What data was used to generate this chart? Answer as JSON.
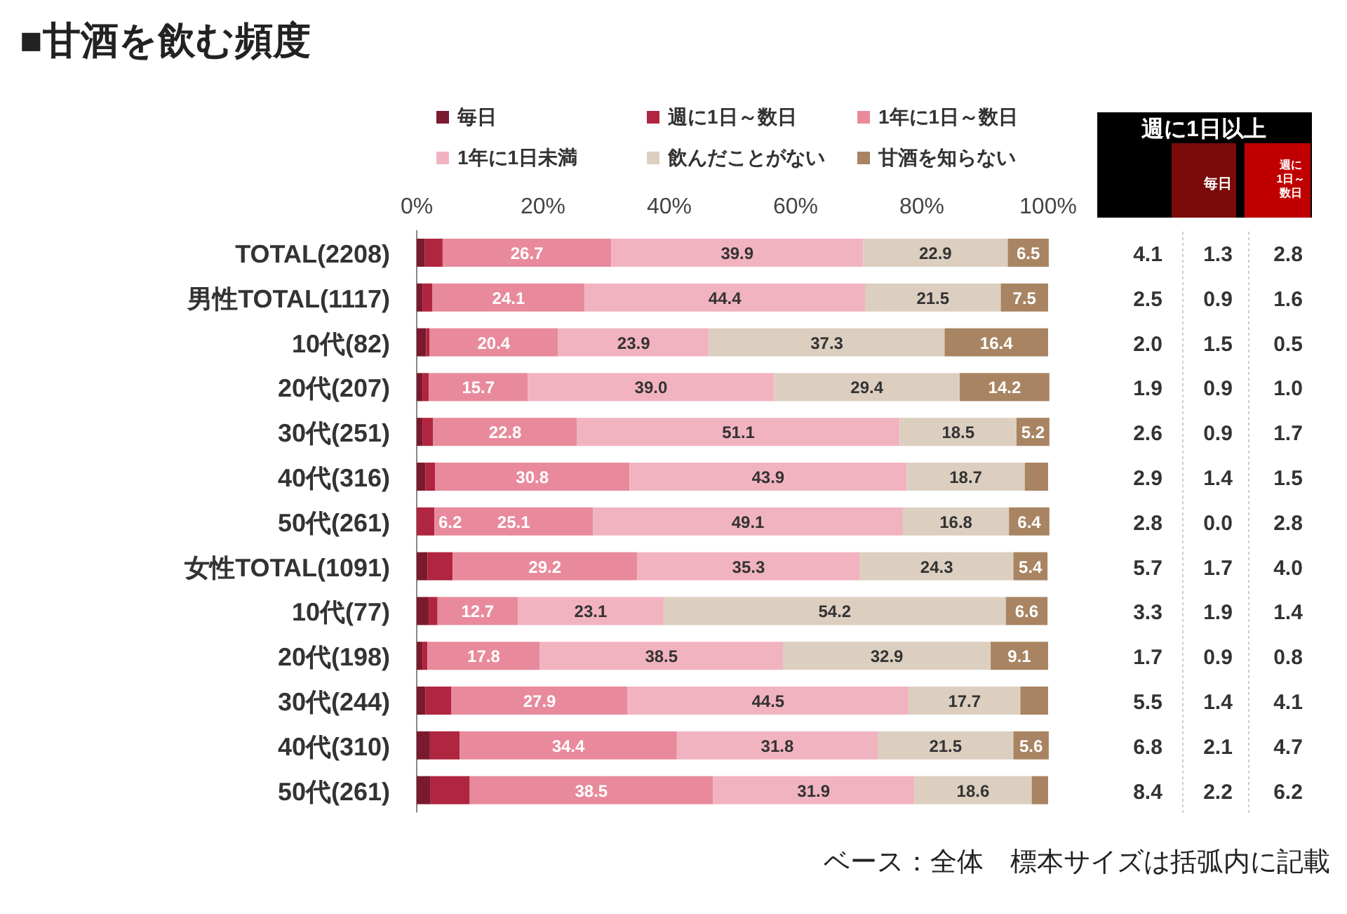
{
  "chart_data": [
    {
      "type": "bar",
      "orientation": "horizontal",
      "stacked": true,
      "legend": "top",
      "title": "■甘酒を飲む頻度",
      "categories": [
        "TOTAL(2208)",
        "男性TOTAL(1117)",
        "10代(82)",
        "20代(207)",
        "30代(251)",
        "40代(316)",
        "50代(261)",
        "女性TOTAL(1091)",
        "10代(77)",
        "20代(198)",
        "30代(244)",
        "40代(310)",
        "50代(261)"
      ],
      "xlim": [
        0,
        100
      ],
      "xticks": [
        {
          "value": 0,
          "label": "0%"
        },
        {
          "value": 20,
          "label": "20%"
        },
        {
          "value": 40,
          "label": "40%"
        },
        {
          "value": 60,
          "label": "60%"
        },
        {
          "value": 80,
          "label": "80%"
        },
        {
          "value": 100,
          "label": "100%"
        }
      ],
      "series": [
        {
          "name": "毎日",
          "color": "#7b1a2e",
          "values": [
            1.3,
            0.9,
            1.5,
            0.9,
            0.9,
            1.4,
            0.0,
            1.7,
            1.9,
            0.9,
            1.4,
            2.1,
            2.2
          ],
          "value_labels": [
            "1.3",
            "0.9",
            "1.5",
            "0.9",
            "0.9",
            "1.4",
            "0.0",
            "1.7",
            "1.9",
            "0.9",
            "1.4",
            "2.1",
            "2.2"
          ]
        },
        {
          "name": "週に1日～数日",
          "color": "#b0253f",
          "values": [
            2.8,
            1.6,
            0.5,
            1.0,
            1.7,
            1.5,
            2.8,
            4.0,
            1.4,
            0.8,
            4.1,
            4.7,
            6.2
          ],
          "value_labels": [
            "2.8",
            "1.6",
            "0.5",
            "1.0",
            "1.7",
            "1.5",
            "2.8",
            "4.0",
            "1.4",
            "0.8",
            "4.1",
            "4.7",
            "6.2"
          ]
        },
        {
          "name": "1年に1日～数日",
          "color": "#e88a9c",
          "values": [
            26.7,
            24.1,
            20.4,
            15.7,
            22.8,
            30.8,
            25.1,
            29.2,
            12.7,
            17.8,
            27.9,
            34.4,
            38.5
          ],
          "value_labels": [
            "26.7",
            "24.1",
            "20.4",
            "15.7",
            "22.8",
            "30.8",
            "25.1",
            "29.2",
            "12.7",
            "17.8",
            "27.9",
            "34.4",
            "38.5"
          ]
        },
        {
          "name": "1年に1日未満",
          "color": "#f2b3c1",
          "values": [
            39.9,
            44.4,
            23.9,
            39.0,
            51.1,
            43.9,
            49.1,
            35.3,
            23.1,
            38.5,
            44.5,
            31.8,
            31.9
          ],
          "value_labels": [
            "39.9",
            "44.4",
            "23.9",
            "39.0",
            "51.1",
            "43.9",
            "49.1",
            "35.3",
            "23.1",
            "38.5",
            "44.5",
            "31.8",
            "31.9"
          ]
        },
        {
          "name": "飲んだことがない",
          "color": "#dccfc0",
          "values": [
            22.9,
            21.5,
            37.3,
            29.4,
            18.5,
            18.7,
            16.8,
            24.3,
            54.2,
            32.9,
            17.7,
            21.5,
            18.6
          ],
          "value_labels": [
            "22.9",
            "21.5",
            "37.3",
            "29.4",
            "18.5",
            "18.7",
            "16.8",
            "24.3",
            "54.2",
            "32.9",
            "17.7",
            "21.5",
            "18.6"
          ]
        },
        {
          "name": "甘酒を知らない",
          "color": "#a88462",
          "values": [
            6.5,
            7.5,
            16.4,
            14.2,
            5.2,
            3.7,
            6.4,
            5.4,
            6.6,
            9.1,
            4.4,
            5.6,
            2.6
          ],
          "value_labels": [
            "6.5",
            "7.5",
            "16.4",
            "14.2",
            "5.2",
            null,
            "6.4",
            "5.4",
            "6.6",
            "9.1",
            null,
            "5.6",
            null
          ]
        }
      ],
      "annotations": [
        {
          "text": "6.2",
          "x": 5.3,
          "y": "50代(261)"
        },
        "ベース：全体　標本サイズは括弧内に記載"
      ]
    },
    {
      "type": "other",
      "title": "週に1日以上",
      "value_labels": [
        "4.1",
        "2.5",
        "2.0",
        "1.9",
        "2.6",
        "2.9",
        "2.8",
        "5.7",
        "3.3",
        "1.7",
        "5.5",
        "6.8",
        "8.4"
      ]
    }
  ]
}
